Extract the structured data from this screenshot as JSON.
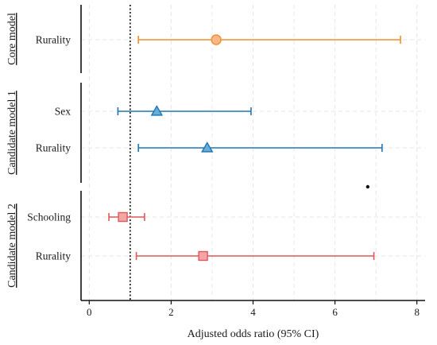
{
  "chart_data": {
    "type": "forest",
    "xlabel": "Adjusted odds ratio (95% CI)",
    "xlim": [
      -0.2,
      8.2
    ],
    "xticks": [
      0,
      2,
      4,
      6,
      8
    ],
    "reference_line": 1,
    "grid": true,
    "panels": [
      {
        "label": "Core model",
        "color": "#F28E2B",
        "fill": "#F7B98A",
        "marker": "circle",
        "rows": [
          {
            "label": "Rurality",
            "estimate": 3.1,
            "lower": 1.2,
            "upper": 7.6
          }
        ]
      },
      {
        "label": "Candidate model 1",
        "color": "#1F77B4",
        "fill": "#6AAED6",
        "marker": "triangle",
        "rows": [
          {
            "label": "Sex",
            "estimate": 1.65,
            "lower": 0.7,
            "upper": 3.95
          },
          {
            "label": "Rurality",
            "estimate": 2.88,
            "lower": 1.2,
            "upper": 7.15
          }
        ]
      },
      {
        "label": "Candidate model 2",
        "color": "#E15759",
        "fill": "#F4A5A5",
        "marker": "square",
        "rows": [
          {
            "label": "Schooling",
            "estimate": 0.82,
            "lower": 0.48,
            "upper": 1.35
          },
          {
            "label": "Rurality",
            "estimate": 2.78,
            "lower": 1.15,
            "upper": 6.95
          }
        ]
      }
    ],
    "extra_points": [
      {
        "x": 6.8,
        "y_between_panels": [
          1,
          2
        ]
      }
    ]
  }
}
